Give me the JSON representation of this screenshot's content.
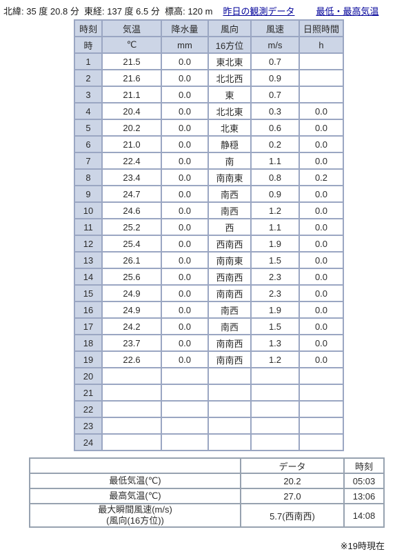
{
  "header": {
    "location": "北緯: 35 度 20.8 分  東経: 137 度 6.5 分  標高: 120 m",
    "link_yesterday": "昨日の観測データ",
    "link_minmax": "最低・最高気温"
  },
  "colors": {
    "hourly_grid": "#9aa6c2",
    "summary_grid": "#97a2b0",
    "shaded_cell": "#ccd5e6",
    "link": "#000099"
  },
  "hourly_table": {
    "columns": [
      {
        "label": "時刻",
        "unit": "時"
      },
      {
        "label": "気温",
        "unit": "℃"
      },
      {
        "label": "降水量",
        "unit": "mm"
      },
      {
        "label": "風向",
        "unit": "16方位"
      },
      {
        "label": "風速",
        "unit": "m/s"
      },
      {
        "label": "日照時間",
        "unit": "h"
      }
    ],
    "rows": [
      {
        "hour": "1",
        "temp": "21.5",
        "precip": "0.0",
        "dir": "東北東",
        "speed": "0.7",
        "sun": ""
      },
      {
        "hour": "2",
        "temp": "21.6",
        "precip": "0.0",
        "dir": "北北西",
        "speed": "0.9",
        "sun": ""
      },
      {
        "hour": "3",
        "temp": "21.1",
        "precip": "0.0",
        "dir": "東",
        "speed": "0.7",
        "sun": ""
      },
      {
        "hour": "4",
        "temp": "20.4",
        "precip": "0.0",
        "dir": "北北東",
        "speed": "0.3",
        "sun": "0.0"
      },
      {
        "hour": "5",
        "temp": "20.2",
        "precip": "0.0",
        "dir": "北東",
        "speed": "0.6",
        "sun": "0.0"
      },
      {
        "hour": "6",
        "temp": "21.0",
        "precip": "0.0",
        "dir": "静穏",
        "speed": "0.2",
        "sun": "0.0"
      },
      {
        "hour": "7",
        "temp": "22.4",
        "precip": "0.0",
        "dir": "南",
        "speed": "1.1",
        "sun": "0.0"
      },
      {
        "hour": "8",
        "temp": "23.4",
        "precip": "0.0",
        "dir": "南南東",
        "speed": "0.8",
        "sun": "0.2"
      },
      {
        "hour": "9",
        "temp": "24.7",
        "precip": "0.0",
        "dir": "南西",
        "speed": "0.9",
        "sun": "0.0"
      },
      {
        "hour": "10",
        "temp": "24.6",
        "precip": "0.0",
        "dir": "南西",
        "speed": "1.2",
        "sun": "0.0"
      },
      {
        "hour": "11",
        "temp": "25.2",
        "precip": "0.0",
        "dir": "西",
        "speed": "1.1",
        "sun": "0.0"
      },
      {
        "hour": "12",
        "temp": "25.4",
        "precip": "0.0",
        "dir": "西南西",
        "speed": "1.9",
        "sun": "0.0"
      },
      {
        "hour": "13",
        "temp": "26.1",
        "precip": "0.0",
        "dir": "南南東",
        "speed": "1.5",
        "sun": "0.0"
      },
      {
        "hour": "14",
        "temp": "25.6",
        "precip": "0.0",
        "dir": "西南西",
        "speed": "2.3",
        "sun": "0.0"
      },
      {
        "hour": "15",
        "temp": "24.9",
        "precip": "0.0",
        "dir": "南南西",
        "speed": "2.3",
        "sun": "0.0"
      },
      {
        "hour": "16",
        "temp": "24.9",
        "precip": "0.0",
        "dir": "南西",
        "speed": "1.9",
        "sun": "0.0"
      },
      {
        "hour": "17",
        "temp": "24.2",
        "precip": "0.0",
        "dir": "南西",
        "speed": "1.5",
        "sun": "0.0"
      },
      {
        "hour": "18",
        "temp": "23.7",
        "precip": "0.0",
        "dir": "南南西",
        "speed": "1.3",
        "sun": "0.0"
      },
      {
        "hour": "19",
        "temp": "22.6",
        "precip": "0.0",
        "dir": "南南西",
        "speed": "1.2",
        "sun": "0.0"
      },
      {
        "hour": "20",
        "temp": "",
        "precip": "",
        "dir": "",
        "speed": "",
        "sun": ""
      },
      {
        "hour": "21",
        "temp": "",
        "precip": "",
        "dir": "",
        "speed": "",
        "sun": ""
      },
      {
        "hour": "22",
        "temp": "",
        "precip": "",
        "dir": "",
        "speed": "",
        "sun": ""
      },
      {
        "hour": "23",
        "temp": "",
        "precip": "",
        "dir": "",
        "speed": "",
        "sun": ""
      },
      {
        "hour": "24",
        "temp": "",
        "precip": "",
        "dir": "",
        "speed": "",
        "sun": ""
      }
    ]
  },
  "summary_table": {
    "col_data": "データ",
    "col_time": "時刻",
    "rows": [
      {
        "label": "最低気温(℃)",
        "data": "20.2",
        "time": "05:03"
      },
      {
        "label": "最高気温(℃)",
        "data": "27.0",
        "time": "13:06"
      },
      {
        "label": "最大瞬間風速(m/s)\n(風向(16方位))",
        "data": "5.7(西南西)",
        "time": "14:08"
      }
    ]
  },
  "footnote": "※19時現在"
}
